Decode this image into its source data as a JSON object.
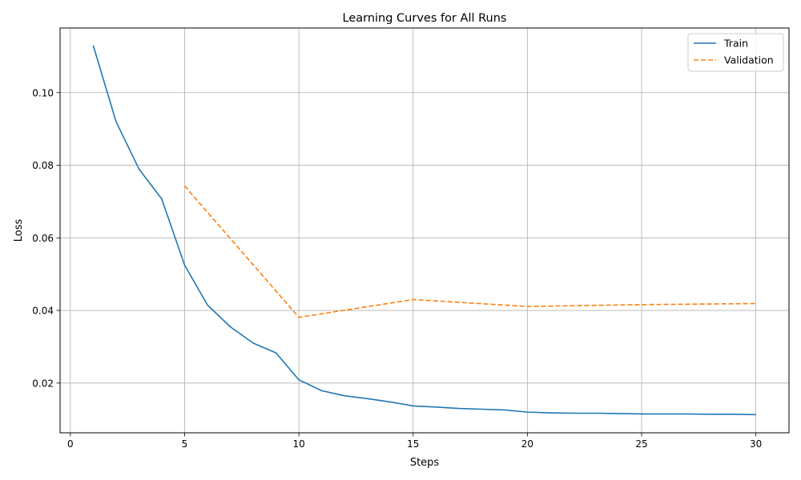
{
  "chart_data": {
    "type": "line",
    "title": "Learning Curves for All Runs",
    "xlabel": "Steps",
    "ylabel": "Loss",
    "xlim": [
      -0.45,
      31.45
    ],
    "ylim": [
      0.0063,
      0.1178
    ],
    "x_ticks": [
      0,
      5,
      10,
      15,
      20,
      25,
      30
    ],
    "y_ticks": [
      0.02,
      0.04,
      0.06,
      0.08,
      0.1
    ],
    "x_tick_labels": [
      "0",
      "5",
      "10",
      "15",
      "20",
      "25",
      "30"
    ],
    "y_tick_labels": [
      "0.02",
      "0.04",
      "0.06",
      "0.08",
      "0.10"
    ],
    "grid": true,
    "legend_position": "top-right",
    "series": [
      {
        "name": "Train",
        "color": "#1f77b4",
        "style": "solid",
        "x": [
          1,
          2,
          3,
          4,
          5,
          6,
          7,
          8,
          9,
          10,
          11,
          12,
          13,
          14,
          15,
          16,
          17,
          18,
          19,
          20,
          21,
          22,
          23,
          24,
          25,
          26,
          27,
          28,
          29,
          30
        ],
        "y": [
          0.113,
          0.092,
          0.079,
          0.0707,
          0.0525,
          0.0415,
          0.0355,
          0.031,
          0.0283,
          0.0209,
          0.0179,
          0.0165,
          0.0157,
          0.0148,
          0.0137,
          0.0134,
          0.013,
          0.0128,
          0.0126,
          0.012,
          0.0118,
          0.0117,
          0.0117,
          0.0116,
          0.0115,
          0.0115,
          0.0115,
          0.0114,
          0.0114,
          0.0113
        ]
      },
      {
        "name": "Validation",
        "color": "#ff7f0e",
        "style": "dashed",
        "x": [
          5,
          10,
          15,
          20,
          25,
          30
        ],
        "y": [
          0.0743,
          0.0381,
          0.043,
          0.0411,
          0.0416,
          0.0419
        ]
      }
    ]
  }
}
